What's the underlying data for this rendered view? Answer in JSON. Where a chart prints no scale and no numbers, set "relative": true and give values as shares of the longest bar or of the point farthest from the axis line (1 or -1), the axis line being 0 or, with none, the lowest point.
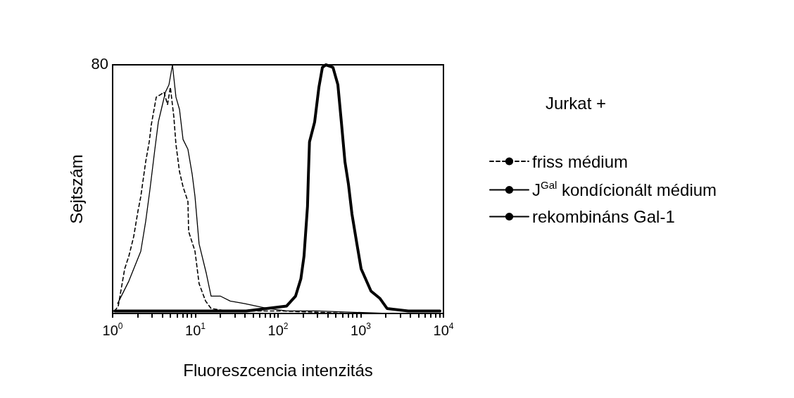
{
  "chart_data": {
    "type": "line",
    "xlabel": "Fluoreszcencia intenzitás",
    "ylabel": "Sejtszám",
    "legend_title": "Jurkat +",
    "relative": true,
    "log": "x",
    "xlim": [
      1,
      10000
    ],
    "xticks": [
      {
        "value": 1,
        "label": "10$^{0}$"
      },
      {
        "value": 2,
        "label": null
      },
      {
        "value": 3,
        "label": null
      },
      {
        "value": 4,
        "label": null
      },
      {
        "value": 5,
        "label": null
      },
      {
        "value": 6,
        "label": null
      },
      {
        "value": 7,
        "label": null
      },
      {
        "value": 8,
        "label": null
      },
      {
        "value": 9,
        "label": null
      },
      {
        "value": 10,
        "label": "10$^{1}$"
      },
      {
        "value": 20,
        "label": null
      },
      {
        "value": 30,
        "label": null
      },
      {
        "value": 40,
        "label": null
      },
      {
        "value": 50,
        "label": null
      },
      {
        "value": 60,
        "label": null
      },
      {
        "value": 70,
        "label": null
      },
      {
        "value": 80,
        "label": null
      },
      {
        "value": 90,
        "label": null
      },
      {
        "value": 100,
        "label": "10$^{2}$"
      },
      {
        "value": 200,
        "label": null
      },
      {
        "value": 300,
        "label": null
      },
      {
        "value": 400,
        "label": null
      },
      {
        "value": 500,
        "label": null
      },
      {
        "value": 600,
        "label": null
      },
      {
        "value": 700,
        "label": null
      },
      {
        "value": 800,
        "label": null
      },
      {
        "value": 900,
        "label": null
      },
      {
        "value": 1000,
        "label": "10$^{3}$"
      },
      {
        "value": 2000,
        "label": null
      },
      {
        "value": 3000,
        "label": null
      },
      {
        "value": 4000,
        "label": null
      },
      {
        "value": 5000,
        "label": null
      },
      {
        "value": 6000,
        "label": null
      },
      {
        "value": 7000,
        "label": null
      },
      {
        "value": 8000,
        "label": null
      },
      {
        "value": 9000,
        "label": null
      },
      {
        "value": 10000,
        "label": "10$^{4}$"
      }
    ],
    "annotations": [
      "80"
    ],
    "legend": "right",
    "grid": false,
    "marker": "none",
    "series": [
      {
        "name": "friss médium",
        "color": "#000000",
        "line_style": "dashed",
        "x": [
          1.06,
          1.17,
          1.4,
          1.57,
          1.8,
          2.02,
          2.19,
          2.51,
          2.77,
          2.94,
          3.37,
          3.79,
          4.18,
          4.61,
          4.99,
          5.5,
          5.83,
          6.44,
          7.1,
          8.14,
          8.3,
          9.91,
          11.1,
          13.3,
          15.5,
          23,
          50,
          110,
          783,
          10000
        ],
        "values": [
          0.01,
          0.03,
          0.18,
          0.23,
          0.31,
          0.41,
          0.47,
          0.61,
          0.69,
          0.76,
          0.87,
          0.88,
          0.89,
          0.84,
          0.91,
          0.79,
          0.68,
          0.57,
          0.51,
          0.45,
          0.33,
          0.25,
          0.12,
          0.05,
          0.02,
          0.01,
          0.01,
          0.01,
          0,
          0
        ]
      },
      {
        "name": "J$^{Gal}$ kondícionált médium",
        "color": "#000000",
        "line_style": "solid",
        "x": [
          1.15,
          1.57,
          2.19,
          2.51,
          2.83,
          3.24,
          3.57,
          3.94,
          4.35,
          4.8,
          5.29,
          5.83,
          6.44,
          7.1,
          8.14,
          9.16,
          9.91,
          11.1,
          13.6,
          15.5,
          20,
          26.4,
          39,
          74.5,
          127,
          294,
          2080,
          10000
        ],
        "values": [
          0.04,
          0.13,
          0.25,
          0.37,
          0.5,
          0.66,
          0.77,
          0.83,
          0.89,
          0.92,
          1,
          0.87,
          0.82,
          0.7,
          0.66,
          0.56,
          0.47,
          0.28,
          0.16,
          0.07,
          0.07,
          0.05,
          0.04,
          0.02,
          0.01,
          0.01,
          0,
          0
        ]
      },
      {
        "name": "rekombináns Gal-1",
        "color": "#000000",
        "line_style": "solid",
        "x": [
          1.06,
          5.83,
          41.3,
          127,
          163,
          189,
          206,
          227,
          233,
          240,
          277,
          312,
          344,
          379,
          461,
          529,
          583,
          644,
          710,
          783,
          898,
          1010,
          1330,
          1710,
          2080,
          3750,
          9070
        ],
        "values": [
          0.01,
          0.01,
          0.01,
          0.03,
          0.07,
          0.14,
          0.23,
          0.43,
          0.56,
          0.69,
          0.77,
          0.91,
          0.99,
          1,
          0.99,
          0.92,
          0.77,
          0.61,
          0.52,
          0.4,
          0.28,
          0.18,
          0.09,
          0.06,
          0.02,
          0.01,
          0.01
        ]
      }
    ]
  }
}
